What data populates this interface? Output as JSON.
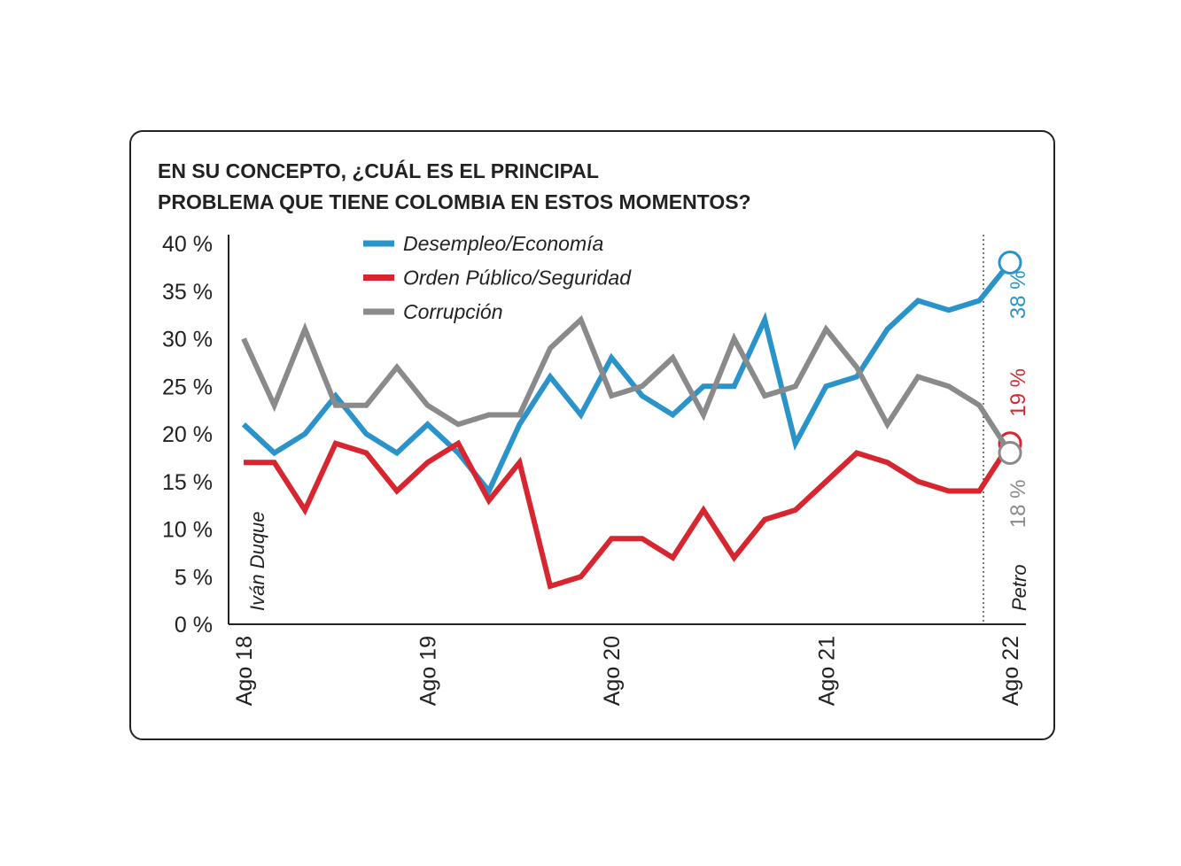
{
  "chart_data": {
    "type": "line",
    "title": "EN SU CONCEPTO, ¿CUÁL ES EL PRINCIPAL",
    "subtitle": "PROBLEMA QUE TIENE COLOMBIA EN ESTOS MOMENTOS?",
    "categories": [
      "Ago 18",
      null,
      null,
      null,
      null,
      null,
      "Ago 19",
      null,
      null,
      null,
      null,
      null,
      "Ago 20",
      null,
      null,
      null,
      null,
      null,
      null,
      "Ago 21",
      null,
      null,
      null,
      null,
      null,
      "Ago 22"
    ],
    "series": [
      {
        "name": "Desempleo/Economía",
        "color": "#2a93c9",
        "values": [
          21,
          18,
          20,
          24,
          20,
          18,
          21,
          18,
          14,
          21,
          26,
          22,
          28,
          24,
          22,
          25,
          25,
          32,
          19,
          25,
          26,
          31,
          34,
          33,
          34,
          38
        ],
        "value_labels": [
          null,
          null,
          null,
          null,
          null,
          null,
          null,
          null,
          null,
          null,
          null,
          null,
          null,
          null,
          null,
          null,
          null,
          null,
          null,
          null,
          null,
          null,
          null,
          null,
          null,
          "38 %"
        ]
      },
      {
        "name": "Orden Público/Seguridad",
        "color": "#d7262f",
        "values": [
          17,
          17,
          12,
          19,
          18,
          14,
          17,
          19,
          13,
          17,
          4,
          5,
          9,
          9,
          7,
          12,
          7,
          11,
          12,
          15,
          18,
          17,
          15,
          14,
          14,
          19
        ],
        "value_labels": [
          null,
          null,
          null,
          null,
          null,
          null,
          null,
          null,
          null,
          null,
          null,
          null,
          null,
          null,
          null,
          null,
          null,
          null,
          null,
          null,
          null,
          null,
          null,
          null,
          null,
          "19 %"
        ]
      },
      {
        "name": "Corrupción",
        "color": "#8a8a8c",
        "values": [
          30,
          23,
          31,
          23,
          23,
          27,
          23,
          21,
          22,
          22,
          29,
          32,
          24,
          25,
          28,
          22,
          30,
          24,
          25,
          31,
          27,
          21,
          26,
          25,
          23,
          18
        ],
        "value_labels": [
          null,
          null,
          null,
          null,
          null,
          null,
          null,
          null,
          null,
          null,
          null,
          null,
          null,
          null,
          null,
          null,
          null,
          null,
          null,
          null,
          null,
          null,
          null,
          null,
          null,
          "18 %"
        ]
      }
    ],
    "ylim": [
      0,
      40
    ],
    "yticks": [
      {
        "value": 0,
        "label": "0 %"
      },
      {
        "value": 5,
        "label": "5 %"
      },
      {
        "value": 10,
        "label": "10 %"
      },
      {
        "value": 15,
        "label": "15 %"
      },
      {
        "value": 20,
        "label": "20 %"
      },
      {
        "value": 25,
        "label": "25 %"
      },
      {
        "value": 30,
        "label": "30 %"
      },
      {
        "value": 35,
        "label": "35 %"
      },
      {
        "value": 40,
        "label": "40 %"
      }
    ],
    "annotations": [
      "Iván Duque",
      "Petro"
    ]
  }
}
